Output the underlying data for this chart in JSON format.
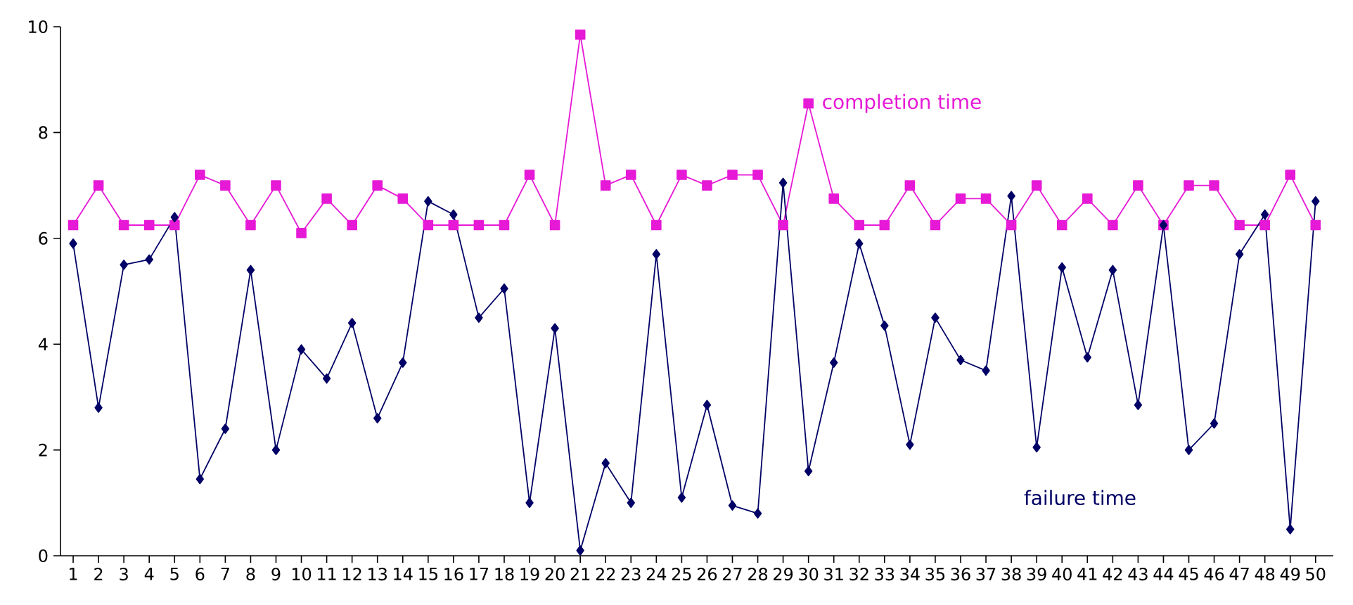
{
  "chart_data": {
    "type": "line",
    "categories": [
      "1",
      "2",
      "3",
      "4",
      "5",
      "6",
      "7",
      "8",
      "9",
      "10",
      "11",
      "12",
      "13",
      "14",
      "15",
      "16",
      "17",
      "18",
      "19",
      "20",
      "21",
      "22",
      "23",
      "24",
      "25",
      "26",
      "27",
      "28",
      "29",
      "30",
      "31",
      "32",
      "33",
      "34",
      "35",
      "36",
      "37",
      "38",
      "39",
      "40",
      "41",
      "42",
      "43",
      "44",
      "45",
      "46",
      "47",
      "48",
      "49",
      "50"
    ],
    "ylim": [
      0,
      10
    ],
    "yticks": [
      0,
      2,
      4,
      6,
      8,
      10
    ],
    "grid": false,
    "series": [
      {
        "name": "completion time",
        "color": "#e619d6",
        "marker": "square",
        "values": [
          6.25,
          7,
          6.25,
          6.25,
          6.25,
          7.2,
          7,
          6.25,
          7,
          6.1,
          6.75,
          6.25,
          7,
          6.75,
          6.25,
          6.25,
          6.25,
          6.25,
          7.2,
          6.25,
          9.85,
          7,
          7.2,
          6.25,
          7.2,
          7,
          7.2,
          7.2,
          6.25,
          8.55,
          6.75,
          6.25,
          6.25,
          7,
          6.25,
          6.75,
          6.75,
          6.25,
          7,
          6.25,
          6.75,
          6.25,
          7,
          6.25,
          7,
          7,
          6.25,
          6.25,
          7.2,
          6.25
        ]
      },
      {
        "name": "failure time",
        "color": "#000066",
        "marker": "diamond",
        "values": [
          5.9,
          2.8,
          5.5,
          5.6,
          6.4,
          1.45,
          2.4,
          5.4,
          2.0,
          3.9,
          3.35,
          4.4,
          2.6,
          3.65,
          6.7,
          6.45,
          4.5,
          5.05,
          1.0,
          4.3,
          0.1,
          1.75,
          1.0,
          5.7,
          1.1,
          2.85,
          0.95,
          0.8,
          7.05,
          1.6,
          3.65,
          5.9,
          4.35,
          2.1,
          4.5,
          3.7,
          3.5,
          6.8,
          2.05,
          5.45,
          3.75,
          5.4,
          2.85,
          6.25,
          2.0,
          2.5,
          5.7,
          6.45,
          0.5,
          6.7
        ]
      }
    ]
  }
}
